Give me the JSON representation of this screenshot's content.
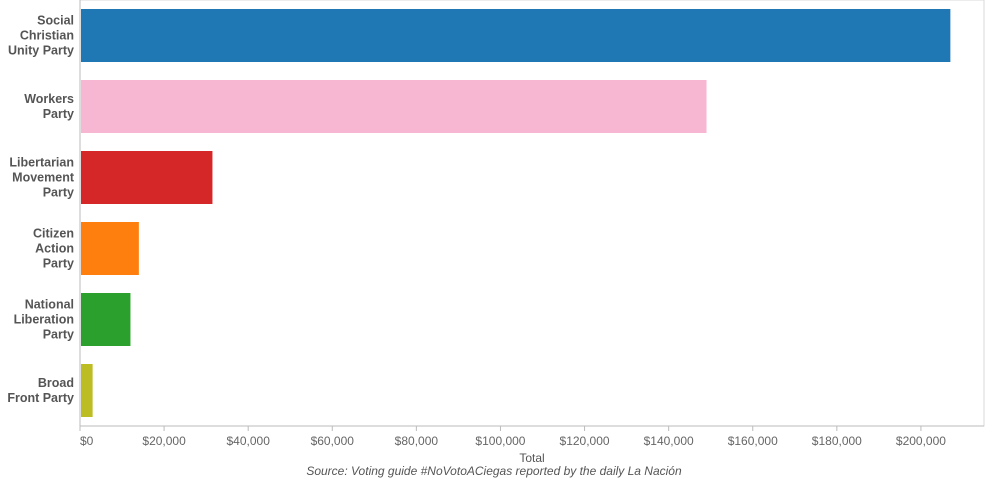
{
  "chart_data": {
    "type": "bar",
    "orientation": "horizontal",
    "categories": [
      "Social Christian Unity Party",
      "Workers Party",
      "Libertarian Movement Party",
      "Citizen Action Party",
      "National Liberation Party",
      "Broad Front Party"
    ],
    "category_label_lines": [
      [
        "Social",
        "Christian",
        "Unity Party"
      ],
      [
        "Workers",
        "Party"
      ],
      [
        "Libertarian",
        "Movement",
        "Party"
      ],
      [
        "Citizen",
        "Action",
        "Party"
      ],
      [
        "National",
        "Liberation",
        "Party"
      ],
      [
        "Broad",
        "Front Party"
      ]
    ],
    "values": [
      207000,
      149000,
      31500,
      14000,
      12000,
      3000
    ],
    "colors": [
      "#1f77b4",
      "#f7b6d2",
      "#d62728",
      "#ff7f0e",
      "#2ca02c",
      "#bcbd22"
    ],
    "xlabel": "Total",
    "ylabel": "",
    "xlim": [
      0,
      215000
    ],
    "xticks": [
      0,
      20000,
      40000,
      60000,
      80000,
      100000,
      120000,
      140000,
      160000,
      180000,
      200000
    ],
    "xtick_labels": [
      "$0",
      "$20,000",
      "$40,000",
      "$60,000",
      "$80,000",
      "$100,000",
      "$120,000",
      "$140,000",
      "$160,000",
      "$180,000",
      "$200,000"
    ],
    "grid": false,
    "source": "Source: Voting guide #NoVotoACiegas reported by the daily La Nación"
  }
}
